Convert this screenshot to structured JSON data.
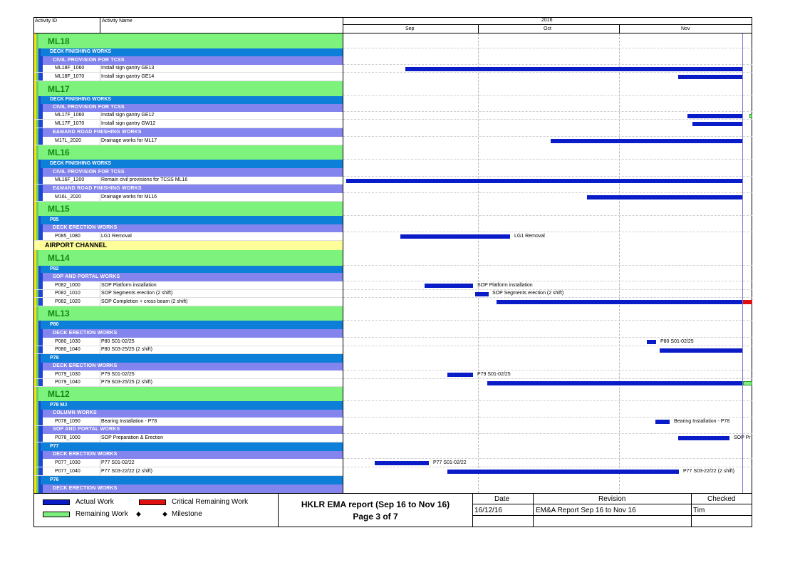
{
  "header": {
    "col_activity_id": "Activity ID",
    "col_activity_name": "Activity Name",
    "year": "2016",
    "months": [
      "Sep",
      "Oct",
      "Nov"
    ]
  },
  "colors": {
    "actual_work": "#0a1cc8",
    "critical_remaining_work": "#e01010",
    "remaining_work": "#7dee7d",
    "wbs_level1": "#7df27d",
    "wbs_level2": "#0d7fd9",
    "wbs_level3": "#8484ee",
    "wbs_airport": "#fdfd9a"
  },
  "rows": [
    {
      "type": "wbs",
      "label": "ML18"
    },
    {
      "type": "blue",
      "label": "DECK FINISHING WORKS"
    },
    {
      "type": "purple",
      "label": "CIVIL PROVISION FOR TCSS"
    },
    {
      "type": "act",
      "id": "ML18F_1060",
      "name": "Install sign gantry GE13"
    },
    {
      "type": "act",
      "id": "ML18F_1070",
      "name": "Install sign gantry GE14"
    },
    {
      "type": "wbs",
      "label": "ML17"
    },
    {
      "type": "blue",
      "label": "DECK FINISHING WORKS"
    },
    {
      "type": "purple",
      "label": "CIVIL PROVISION FOR TCSS"
    },
    {
      "type": "act",
      "id": "ML17F_1060",
      "name": "Install sign gantry GE12"
    },
    {
      "type": "act",
      "id": "ML17F_1070",
      "name": "Install sign gantry GW12"
    },
    {
      "type": "purple",
      "label": "E&MAND ROAD FINISHING WORKS"
    },
    {
      "type": "act",
      "id": "M17L_2020",
      "name": "Drainage works for ML17"
    },
    {
      "type": "wbs",
      "label": "ML16"
    },
    {
      "type": "blue",
      "label": "DECK FINISHING WORKS"
    },
    {
      "type": "purple",
      "label": "CIVIL PROVISION FOR TCSS"
    },
    {
      "type": "act",
      "id": "ML16F_1200",
      "name": "Remain civil provisions for TCSS ML16"
    },
    {
      "type": "purple",
      "label": "E&MAND ROAD FINISHING WORKS"
    },
    {
      "type": "act",
      "id": "M16L_2020",
      "name": "Drainage works for ML16"
    },
    {
      "type": "wbs",
      "label": "ML15"
    },
    {
      "type": "blue",
      "label": "P85"
    },
    {
      "type": "purple",
      "label": "DECK ERECTION WORKS"
    },
    {
      "type": "act",
      "id": "P085_1080",
      "name": "LG1 Removal",
      "bar_label": "LG1 Removal"
    },
    {
      "type": "yellow",
      "label": "AIRPORT CHANNEL"
    },
    {
      "type": "wbs",
      "label": "ML14"
    },
    {
      "type": "blue",
      "label": "P82"
    },
    {
      "type": "purple",
      "label": "SOP AND PORTAL WORKS"
    },
    {
      "type": "act",
      "id": "P082_1000",
      "name": "SOP Platform installation",
      "bar_label": "SOP Platform installation"
    },
    {
      "type": "act",
      "id": "P082_1010",
      "name": "SOP Segments erection (2 shift)",
      "bar_label": "SOP Segments erection (2 shift)"
    },
    {
      "type": "act",
      "id": "P082_1020",
      "name": "SOP Completion + cross beam (2 shift)"
    },
    {
      "type": "wbs",
      "label": "ML13"
    },
    {
      "type": "blue",
      "label": "P80"
    },
    {
      "type": "purple",
      "label": "DECK ERECTION WORKS"
    },
    {
      "type": "act",
      "id": "P080_1030",
      "name": "P80 S01-02/25",
      "bar_label": "P80 S01-02/25"
    },
    {
      "type": "act",
      "id": "P080_1040",
      "name": "P80 S03-25/25 (2 shift)"
    },
    {
      "type": "blue",
      "label": "P79"
    },
    {
      "type": "purple",
      "label": "DECK ERECTION WORKS"
    },
    {
      "type": "act",
      "id": "P079_1030",
      "name": "P79 S01-02/25",
      "bar_label": "P79 S01-02/25"
    },
    {
      "type": "act",
      "id": "P079_1040",
      "name": "P79 S03-25/25 (2 shift)"
    },
    {
      "type": "wbs",
      "label": "ML12"
    },
    {
      "type": "blue",
      "label": "P78 MJ"
    },
    {
      "type": "purple",
      "label": "COLUMN WORKS"
    },
    {
      "type": "act",
      "id": "P078_1090",
      "name": "Bearing Installation - P78",
      "bar_label": "Bearing Installation - P78"
    },
    {
      "type": "purple",
      "label": "SOP AND PORTAL WORKS"
    },
    {
      "type": "act",
      "id": "P078_1000",
      "name": "SOP Preparation & Erection",
      "bar_label": "SOP Pr"
    },
    {
      "type": "blue",
      "label": "P77"
    },
    {
      "type": "purple",
      "label": "DECK ERECTION WORKS"
    },
    {
      "type": "act",
      "id": "P077_1030",
      "name": "P77 S01-02/22",
      "bar_label": "P77 S01-02/22"
    },
    {
      "type": "act",
      "id": "P077_1040",
      "name": "P77 S03-22/22 (2 shift)",
      "bar_label": "P77 S03-22/22 (2 shift)"
    },
    {
      "type": "blue",
      "label": "P76"
    },
    {
      "type": "purple",
      "label": "DECK ERECTION WORKS"
    }
  ],
  "legend": {
    "actual_work": "Actual Work",
    "critical_remaining_work": "Critical Remaining Work",
    "remaining_work": "Remaining Work",
    "milestone": "Milestone"
  },
  "title": {
    "line1": "HKLR EMA report (Sep 16 to Nov 16)",
    "line2": "Page 3 of 7"
  },
  "footer_table": {
    "col_date": "Date",
    "col_revision": "Revision",
    "col_checked": "Checked",
    "date": "16/12/16",
    "revision": "EM&A Report Sep 16 to Nov 16",
    "checked": "Tim"
  }
}
